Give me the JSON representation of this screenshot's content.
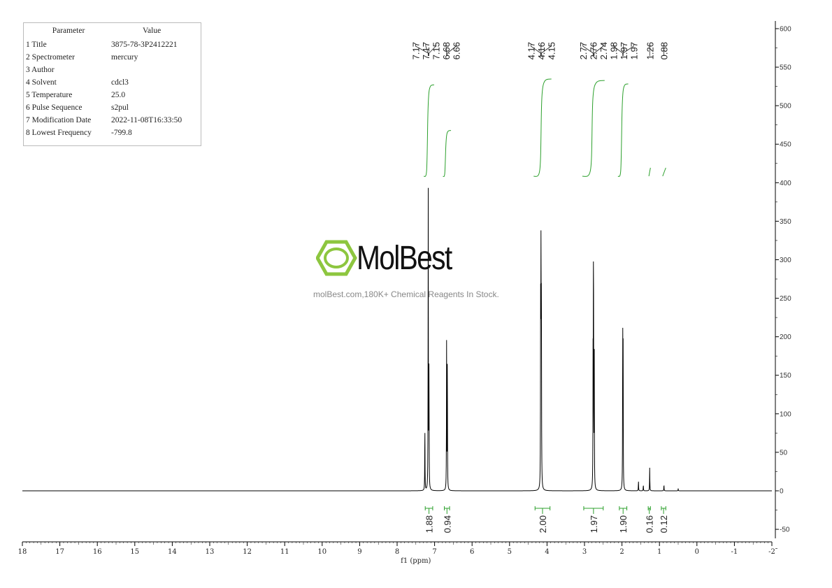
{
  "params": {
    "header": [
      "Parameter",
      "Value"
    ],
    "rows": [
      [
        "1 Title",
        "3875-78-3P2412221"
      ],
      [
        "2 Spectrometer",
        "mercury"
      ],
      [
        "3 Author",
        ""
      ],
      [
        "4 Solvent",
        "cdcl3"
      ],
      [
        "5 Temperature",
        "25.0"
      ],
      [
        "6 Pulse Sequence",
        "s2pul"
      ],
      [
        "7 Modification Date",
        "2022-11-08T16:33:50"
      ],
      [
        "8 Lowest Frequency",
        "-799.8"
      ]
    ]
  },
  "watermark": {
    "brand": "MolBest",
    "tagline": "molBest.com,180K+ Chemical Reagents In Stock.",
    "color": "#8dc63f"
  },
  "chart_data": {
    "type": "line",
    "xlabel": "f1 (ppm)",
    "xlim": [
      18,
      -2
    ],
    "ylim": [
      -60,
      610
    ],
    "x_ticks": [
      18,
      17,
      16,
      15,
      14,
      13,
      12,
      11,
      10,
      9,
      8,
      7,
      6,
      5,
      4,
      3,
      2,
      1,
      0,
      -1,
      -2
    ],
    "y_ticks": [
      -50,
      0,
      50,
      100,
      150,
      200,
      250,
      300,
      350,
      400,
      450,
      500,
      550,
      600
    ],
    "peaks": [
      {
        "ppm": 7.26,
        "height": 86
      },
      {
        "ppm": 7.17,
        "height": 388
      },
      {
        "ppm": 7.15,
        "height": 160
      },
      {
        "ppm": 6.68,
        "height": 189
      },
      {
        "ppm": 6.66,
        "height": 175
      },
      {
        "ppm": 4.17,
        "height": 230
      },
      {
        "ppm": 4.16,
        "height": 302
      },
      {
        "ppm": 4.15,
        "height": 250
      },
      {
        "ppm": 2.77,
        "height": 180
      },
      {
        "ppm": 2.76,
        "height": 327
      },
      {
        "ppm": 2.74,
        "height": 185
      },
      {
        "ppm": 1.98,
        "height": 203
      },
      {
        "ppm": 1.97,
        "height": 180
      },
      {
        "ppm": 1.56,
        "height": 13
      },
      {
        "ppm": 1.43,
        "height": 8
      },
      {
        "ppm": 1.26,
        "height": 30
      },
      {
        "ppm": 0.88,
        "height": 8
      },
      {
        "ppm": 0.5,
        "height": 3
      }
    ],
    "peak_labels": [
      "7.17",
      "7.17",
      "7.15",
      "6.68",
      "6.66",
      "4.17",
      "4.16",
      "4.15",
      "2.77",
      "2.76",
      "2.74",
      "1.98",
      "1.97",
      "1.97",
      "1.26",
      "0.88"
    ],
    "integrals": [
      {
        "from": 7.25,
        "to": 7.05,
        "value": "1.88"
      },
      {
        "from": 6.74,
        "to": 6.6,
        "value": "0.94"
      },
      {
        "from": 4.32,
        "to": 3.92,
        "value": "2.00"
      },
      {
        "from": 3.02,
        "to": 2.5,
        "value": "1.97"
      },
      {
        "from": 2.07,
        "to": 1.87,
        "value": "1.90"
      },
      {
        "from": 1.3,
        "to": 1.24,
        "value": "0.16"
      },
      {
        "from": 0.95,
        "to": 0.83,
        "value": "0.12"
      }
    ],
    "colors": {
      "spectrum": "#000000",
      "integral": "#2ca02c"
    }
  }
}
